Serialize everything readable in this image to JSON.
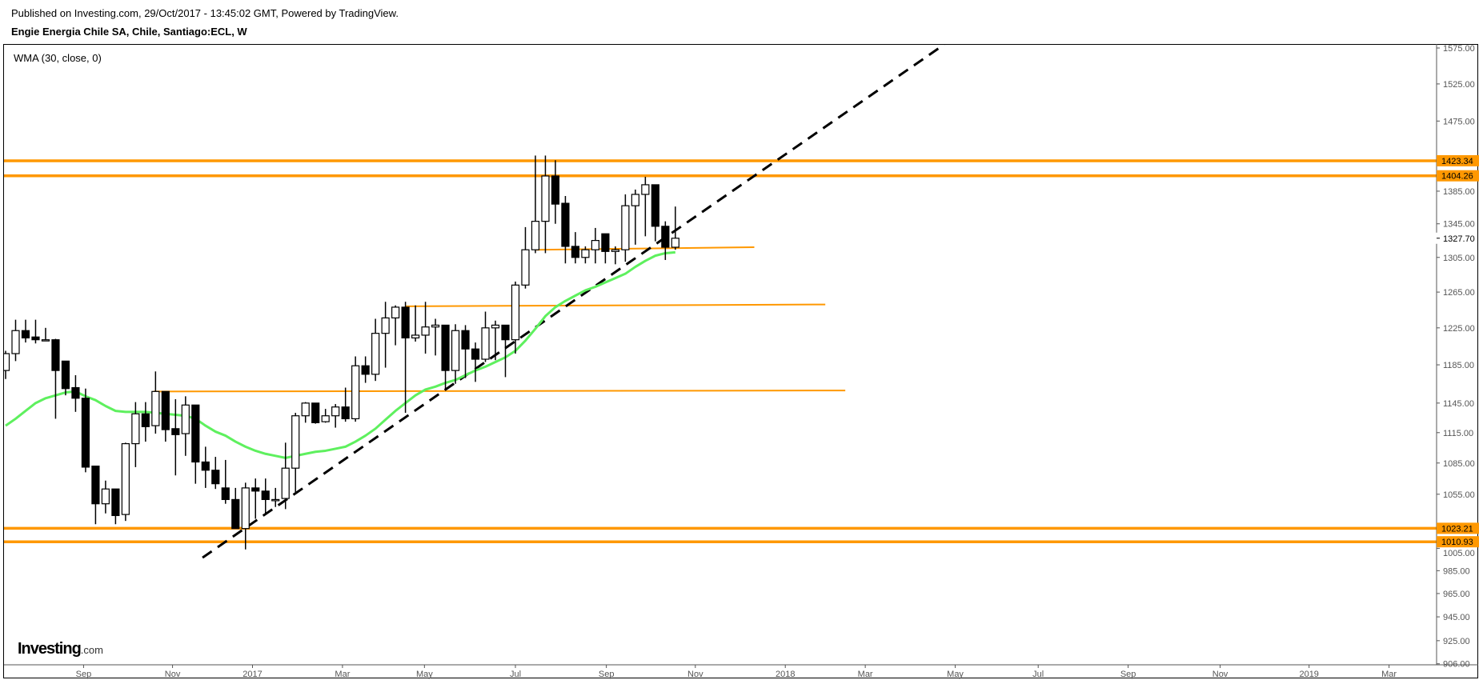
{
  "header": {
    "published": "Published on Investing.com, 29/Oct/2017 - 13:45:02 GMT, Powered by TradingView.",
    "title": "Engie Energia Chile SA, Chile, Santiago:ECL, W"
  },
  "indicator_label": "WMA (30, close, 0)",
  "logo": {
    "main": "Investing",
    "suffix": ".com"
  },
  "chart_data": {
    "type": "candlestick",
    "title": "Engie Energia Chile SA, Chile, Santiago:ECL, W",
    "scale": "log",
    "ylim": [
      900,
      1590
    ],
    "y_ticks": [
      "1575.00",
      "1525.00",
      "1475.00",
      "1385.00",
      "1345.00",
      "1305.00",
      "1265.00",
      "1225.00",
      "1185.00",
      "1145.00",
      "1115.00",
      "1085.00",
      "1055.00",
      "1005.00",
      "985.00",
      "965.00",
      "945.00",
      "925.00",
      "906.00"
    ],
    "x_ticks": [
      {
        "label": "Sep",
        "week": 7.8
      },
      {
        "label": "Nov",
        "week": 16.7
      },
      {
        "label": "2017",
        "week": 24.7
      },
      {
        "label": "Mar",
        "week": 33.7
      },
      {
        "label": "May",
        "week": 41.9
      },
      {
        "label": "Jul",
        "week": 51
      },
      {
        "label": "Sep",
        "week": 60.1
      },
      {
        "label": "Nov",
        "week": 69
      },
      {
        "label": "2018",
        "week": 78
      },
      {
        "label": "Mar",
        "week": 86
      },
      {
        "label": "May",
        "week": 95
      },
      {
        "label": "Jul",
        "week": 103.3
      },
      {
        "label": "Sep",
        "week": 112.3
      },
      {
        "label": "Nov",
        "week": 121.5
      },
      {
        "label": "2019",
        "week": 130.4
      },
      {
        "label": "Mar",
        "week": 138.4
      }
    ],
    "candles_ohlc": [
      [
        1179,
        1200,
        1170,
        1197
      ],
      [
        1197,
        1234,
        1189,
        1222
      ],
      [
        1222,
        1234,
        1209,
        1214
      ],
      [
        1215,
        1234,
        1208,
        1212
      ],
      [
        1212,
        1225,
        1212,
        1212
      ],
      [
        1212,
        1213,
        1129,
        1179
      ],
      [
        1189,
        1189,
        1153,
        1160
      ],
      [
        1161,
        1174,
        1136,
        1150
      ],
      [
        1150,
        1160,
        1076,
        1081
      ],
      [
        1082,
        1082,
        1027,
        1046
      ],
      [
        1046,
        1068,
        1037,
        1060
      ],
      [
        1060,
        1060,
        1027,
        1035
      ],
      [
        1036,
        1105,
        1030,
        1104
      ],
      [
        1104,
        1146,
        1081,
        1134
      ],
      [
        1134,
        1146,
        1106,
        1121
      ],
      [
        1122,
        1178,
        1114,
        1157
      ],
      [
        1157,
        1157,
        1106,
        1118
      ],
      [
        1119,
        1149,
        1073,
        1113
      ],
      [
        1114,
        1152,
        1092,
        1143
      ],
      [
        1143,
        1143,
        1065,
        1086
      ],
      [
        1086,
        1101,
        1061,
        1078
      ],
      [
        1078,
        1091,
        1060,
        1065
      ],
      [
        1061,
        1088,
        1046,
        1050
      ],
      [
        1050,
        1061,
        1023,
        1023
      ],
      [
        1023,
        1066,
        1004,
        1061
      ],
      [
        1061,
        1070,
        1032,
        1058
      ],
      [
        1058,
        1070,
        1037,
        1050
      ],
      [
        1050,
        1061,
        1043,
        1050
      ],
      [
        1051,
        1105,
        1041,
        1080
      ],
      [
        1080,
        1135,
        1057,
        1132
      ],
      [
        1132,
        1146,
        1125,
        1145
      ],
      [
        1145,
        1145,
        1124,
        1125
      ],
      [
        1126,
        1139,
        1125,
        1132
      ],
      [
        1132,
        1144,
        1120,
        1141
      ],
      [
        1141,
        1161,
        1126,
        1129
      ],
      [
        1129,
        1194,
        1126,
        1184
      ],
      [
        1184,
        1194,
        1166,
        1175
      ],
      [
        1175,
        1235,
        1168,
        1219
      ],
      [
        1219,
        1254,
        1182,
        1236
      ],
      [
        1236,
        1250,
        1206,
        1248
      ],
      [
        1248,
        1254,
        1135,
        1214
      ],
      [
        1214,
        1250,
        1210,
        1217
      ],
      [
        1217,
        1254,
        1197,
        1226
      ],
      [
        1226,
        1235,
        1195,
        1228
      ],
      [
        1228,
        1228,
        1159,
        1179
      ],
      [
        1179,
        1229,
        1165,
        1222
      ],
      [
        1222,
        1228,
        1171,
        1202
      ],
      [
        1202,
        1209,
        1167,
        1191
      ],
      [
        1191,
        1243,
        1188,
        1225
      ],
      [
        1225,
        1233,
        1190,
        1228
      ],
      [
        1228,
        1228,
        1172,
        1212
      ],
      [
        1212,
        1277,
        1197,
        1273
      ],
      [
        1273,
        1341,
        1269,
        1314
      ],
      [
        1314,
        1430,
        1310,
        1348
      ],
      [
        1348,
        1430,
        1310,
        1404
      ],
      [
        1404,
        1424,
        1345,
        1369
      ],
      [
        1370,
        1379,
        1298,
        1318
      ],
      [
        1318,
        1335,
        1298,
        1305
      ],
      [
        1305,
        1318,
        1298,
        1314
      ],
      [
        1314,
        1340,
        1298,
        1325
      ],
      [
        1333,
        1333,
        1298,
        1312
      ],
      [
        1312,
        1318,
        1297,
        1314
      ],
      [
        1314,
        1381,
        1300,
        1367
      ],
      [
        1367,
        1387,
        1320,
        1381
      ],
      [
        1381,
        1403,
        1330,
        1393
      ],
      [
        1393,
        1393,
        1324,
        1342
      ],
      [
        1342,
        1348,
        1302,
        1317
      ],
      [
        1317,
        1366,
        1314,
        1327.7
      ]
    ],
    "wma30": [
      1122,
      1129,
      1137,
      1145,
      1150,
      1153,
      1156,
      1157,
      1152,
      1148,
      1142,
      1137,
      1136,
      1136,
      1136,
      1135,
      1134,
      1133,
      1132,
      1129,
      1122,
      1116,
      1112,
      1106,
      1101,
      1097,
      1094,
      1092,
      1090,
      1092,
      1094,
      1096,
      1097,
      1099,
      1101,
      1106,
      1112,
      1119,
      1128,
      1137,
      1145,
      1153,
      1159,
      1162,
      1166,
      1169,
      1174,
      1179,
      1183,
      1188,
      1193,
      1200,
      1211,
      1224,
      1238,
      1248,
      1255,
      1261,
      1267,
      1271,
      1276,
      1281,
      1286,
      1294,
      1301,
      1307,
      1310,
      1311
    ],
    "last_price": "1327.70",
    "horizontal_levels": [
      {
        "price": 1423.34,
        "label": "1423.34"
      },
      {
        "price": 1404.26,
        "label": "1404.26"
      },
      {
        "price": 1023.21,
        "label": "1023.21"
      },
      {
        "price": 1010.93,
        "label": "1010.93"
      }
    ],
    "segments": [
      {
        "kind": "support",
        "from": [
          53.1,
          1314
        ],
        "to": [
          74.9,
          1317
        ]
      },
      {
        "kind": "support",
        "from": [
          40,
          1249
        ],
        "to": [
          82,
          1251
        ]
      },
      {
        "kind": "support",
        "from": [
          14.8,
          1157
        ],
        "to": [
          84,
          1158
        ]
      },
      {
        "kind": "trendline",
        "from": [
          19.7,
          996.6
        ],
        "to": [
          93.9,
          1580
        ]
      }
    ],
    "colors": {
      "level": "#ff9800",
      "wma": "#5ef05e",
      "up": "#ffffff",
      "down": "#000000",
      "trend": "#000000"
    }
  }
}
